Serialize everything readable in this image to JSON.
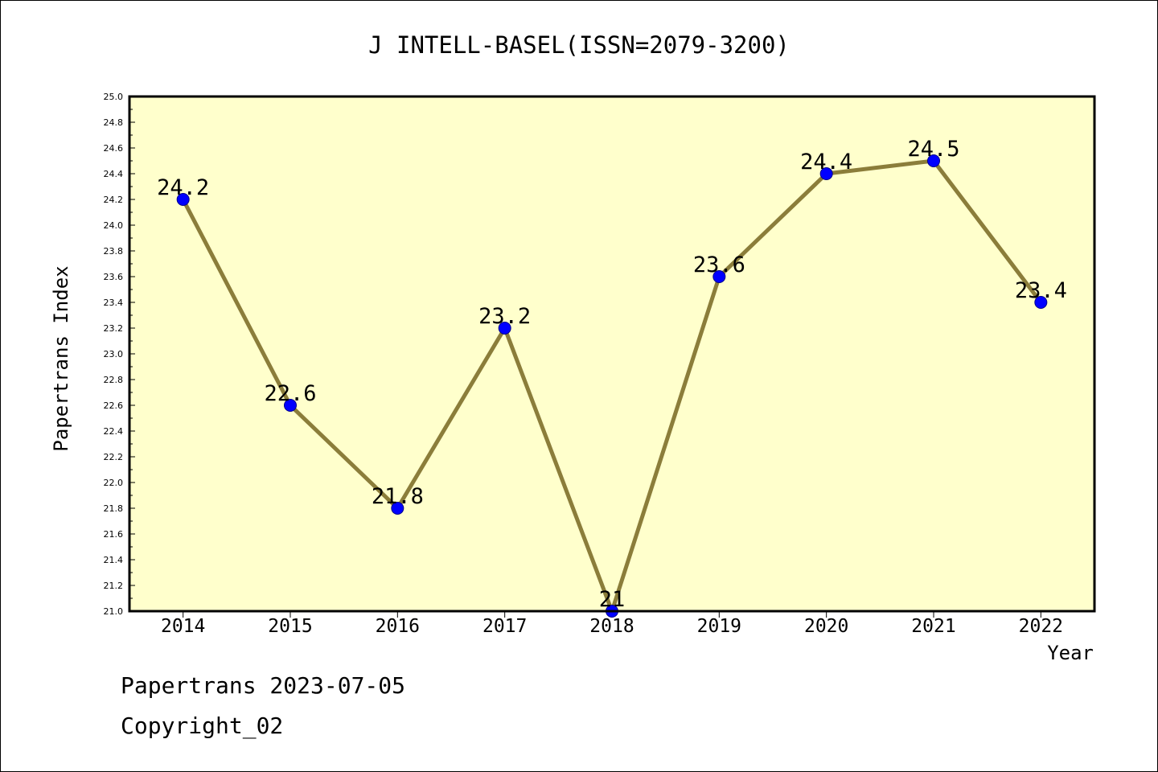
{
  "chart_data": {
    "type": "line",
    "title": "J INTELL-BASEL(ISSN=2079-3200)",
    "xlabel": "Year",
    "ylabel": "Papertrans Index",
    "categories": [
      "2014",
      "2015",
      "2016",
      "2017",
      "2018",
      "2019",
      "2020",
      "2021",
      "2022"
    ],
    "values": [
      24.2,
      22.6,
      21.8,
      23.2,
      21,
      23.6,
      24.4,
      24.5,
      23.4
    ],
    "data_labels": [
      "24.2",
      "22.6",
      "21.8",
      "23.2",
      "21",
      "23.6",
      "24.4",
      "24.5",
      "23.4"
    ],
    "ylim": [
      21.0,
      25.0
    ],
    "yticks": [
      "21.0",
      "21.2",
      "21.4",
      "21.6",
      "21.8",
      "22.0",
      "22.2",
      "22.4",
      "22.6",
      "22.8",
      "23.0",
      "23.2",
      "23.4",
      "23.6",
      "23.8",
      "24.0",
      "24.2",
      "24.4",
      "24.6",
      "24.8",
      "25.0"
    ],
    "grid": false,
    "colors": {
      "plot_background": "#ffffcc",
      "line": "#8b7d3a",
      "marker": "#0000ff"
    }
  },
  "footer": {
    "date_line": "Papertrans 2023-07-05",
    "copyright": "Copyright_02"
  }
}
